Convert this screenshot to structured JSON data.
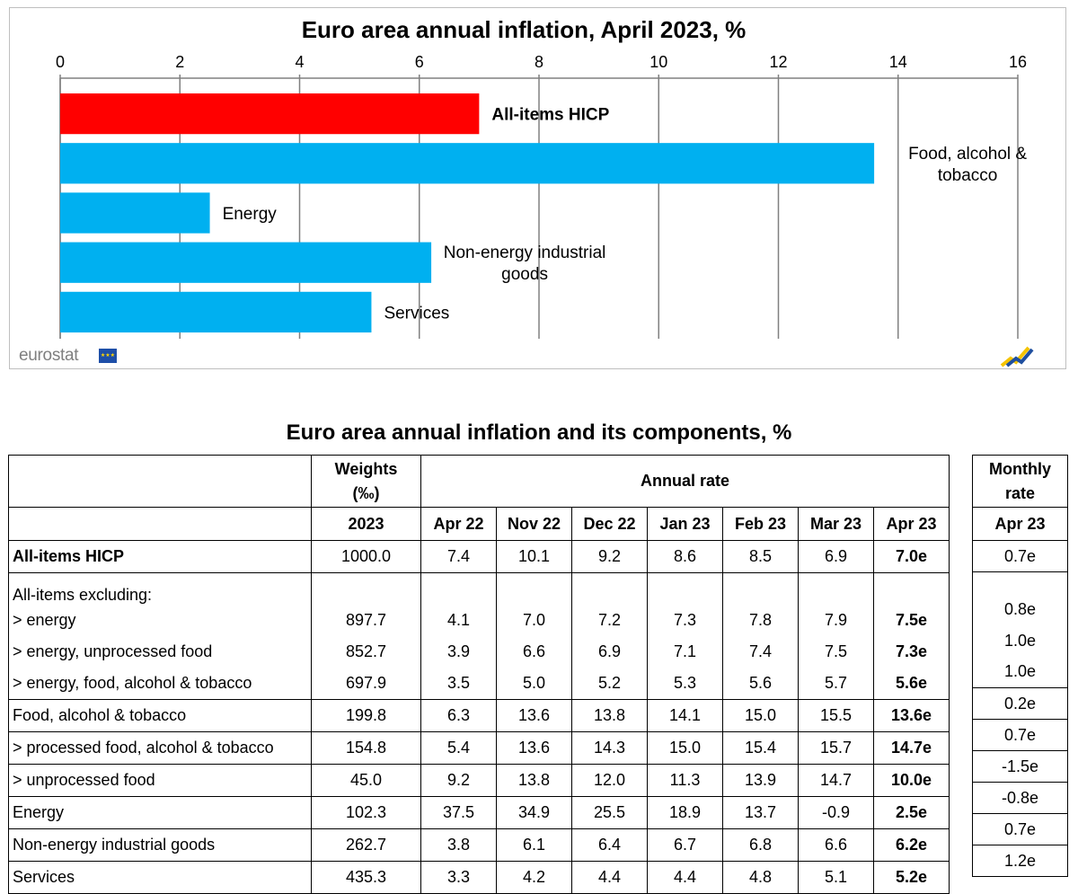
{
  "chart_data": {
    "type": "bar",
    "orientation": "horizontal",
    "title": "Euro area annual inflation,  April 2023, %",
    "xlim": [
      0,
      16
    ],
    "x_ticks": [
      "0",
      "2",
      "4",
      "6",
      "8",
      "10",
      "12",
      "14",
      "16"
    ],
    "x_tick_values": [
      0,
      2,
      4,
      6,
      8,
      10,
      12,
      14,
      16
    ],
    "axis_position": "top",
    "grid": true,
    "categories": [
      "All-items HICP",
      "Food, alcohol & tobacco",
      "Energy",
      "Non-energy industrial goods",
      "Services"
    ],
    "category_lines": [
      [
        "All-items HICP"
      ],
      [
        "Food, alcohol &",
        "tobacco"
      ],
      [
        "Energy"
      ],
      [
        "Non-energy industrial",
        "goods"
      ],
      [
        "Services"
      ]
    ],
    "values": [
      7.0,
      13.6,
      2.5,
      6.2,
      5.2
    ],
    "bar_colors": [
      "#ff0000",
      "#00b0f0",
      "#00b0f0",
      "#00b0f0",
      "#00b0f0"
    ],
    "bold_categories": [
      true,
      false,
      false,
      false,
      false
    ]
  },
  "branding": {
    "eurostat": "eurostat"
  },
  "table": {
    "title": "Euro area annual inflation and its components, %",
    "header": {
      "weights": "Weights",
      "weights_unit": "(‰)",
      "annual_rate": "Annual rate",
      "monthly_rate_line1": "Monthly",
      "monthly_rate_line2": "rate",
      "weights_year": "2023",
      "months": [
        "Apr 22",
        "Nov 22",
        "Dec 22",
        "Jan 23",
        "Feb 23",
        "Mar 23",
        "Apr 23"
      ],
      "monthly_month": "Apr 23"
    },
    "excluding_label": "All-items excluding:",
    "rows": [
      {
        "label": "All-items HICP",
        "weight": "1000.0",
        "rates": [
          "7.4",
          "10.1",
          "9.2",
          "8.6",
          "8.5",
          "6.9",
          "7.0e"
        ],
        "monthly": "0.7e"
      },
      {
        "label": "> energy",
        "weight": "897.7",
        "rates": [
          "4.1",
          "7.0",
          "7.2",
          "7.3",
          "7.8",
          "7.9",
          "7.5e"
        ],
        "monthly": "0.8e"
      },
      {
        "label": "> energy, unprocessed food",
        "weight": "852.7",
        "rates": [
          "3.9",
          "6.6",
          "6.9",
          "7.1",
          "7.4",
          "7.5",
          "7.3e"
        ],
        "monthly": "1.0e"
      },
      {
        "label": "> energy, food, alcohol & tobacco",
        "weight": "697.9",
        "rates": [
          "3.5",
          "5.0",
          "5.2",
          "5.3",
          "5.6",
          "5.7",
          "5.6e"
        ],
        "monthly": "1.0e"
      },
      {
        "label": "Food, alcohol & tobacco",
        "weight": "199.8",
        "rates": [
          "6.3",
          "13.6",
          "13.8",
          "14.1",
          "15.0",
          "15.5",
          "13.6e"
        ],
        "monthly": "0.2e"
      },
      {
        "label": "> processed food, alcohol & tobacco",
        "weight": "154.8",
        "rates": [
          "5.4",
          "13.6",
          "14.3",
          "15.0",
          "15.4",
          "15.7",
          "14.7e"
        ],
        "monthly": "0.7e"
      },
      {
        "label": "> unprocessed food",
        "weight": "45.0",
        "rates": [
          "9.2",
          "13.8",
          "12.0",
          "11.3",
          "13.9",
          "14.7",
          "10.0e"
        ],
        "monthly": "-1.5e"
      },
      {
        "label": "Energy",
        "weight": "102.3",
        "rates": [
          "37.5",
          "34.9",
          "25.5",
          "18.9",
          "13.7",
          "-0.9",
          "2.5e"
        ],
        "monthly": "-0.8e"
      },
      {
        "label": "Non-energy industrial goods",
        "weight": "262.7",
        "rates": [
          "3.8",
          "6.1",
          "6.4",
          "6.7",
          "6.8",
          "6.6",
          "6.2e"
        ],
        "monthly": "0.7e"
      },
      {
        "label": "Services",
        "weight": "435.3",
        "rates": [
          "3.3",
          "4.2",
          "4.4",
          "4.4",
          "4.8",
          "5.1",
          "5.2e"
        ],
        "monthly": "1.2e"
      }
    ]
  }
}
